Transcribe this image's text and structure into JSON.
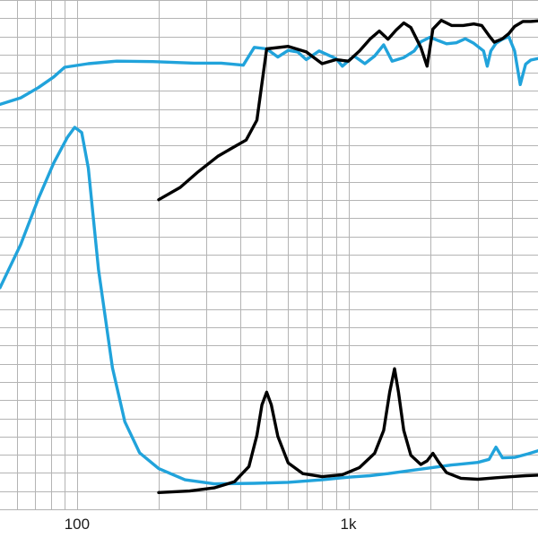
{
  "chart_data": {
    "type": "line",
    "title": "",
    "xlabel": "",
    "ylabel": "",
    "x_scale": "log",
    "xlim": [
      52,
      5000
    ],
    "ylim": [
      0,
      100
    ],
    "grid": true,
    "x_tick_labels": [
      {
        "value": 100,
        "label": "100"
      },
      {
        "value": 1000,
        "label": "1k"
      }
    ],
    "y_gridlines": [
      0,
      3.57,
      7.14,
      10.71,
      14.29,
      17.86,
      21.43,
      25,
      28.57,
      32.14,
      35.71,
      39.29,
      42.86,
      46.43,
      50,
      53.57,
      57.14,
      60.71,
      64.29,
      67.86,
      71.43,
      75,
      78.57,
      82.14,
      85.71,
      89.29,
      92.86,
      96.43,
      100
    ],
    "colors": {
      "blue": "#21a3db",
      "black": "#000000",
      "grid": "#b4b4b4"
    },
    "series": [
      {
        "color": "#21a3db",
        "points": [
          [
            52,
            79.5
          ],
          [
            62,
            80.8
          ],
          [
            72,
            82.8
          ],
          [
            82,
            84.9
          ],
          [
            90,
            86.8
          ],
          [
            110,
            87.5
          ],
          [
            140,
            88.0
          ],
          [
            190,
            87.9
          ],
          [
            270,
            87.6
          ],
          [
            340,
            87.6
          ],
          [
            410,
            87.2
          ],
          [
            450,
            90.7
          ],
          [
            500,
            90.4
          ],
          [
            550,
            88.8
          ],
          [
            600,
            90.1
          ],
          [
            650,
            89.8
          ],
          [
            700,
            88.3
          ],
          [
            780,
            90.0
          ],
          [
            850,
            89.1
          ],
          [
            900,
            88.5
          ],
          [
            950,
            87.0
          ],
          [
            1050,
            89.0
          ],
          [
            1150,
            87.5
          ],
          [
            1250,
            89.0
          ],
          [
            1350,
            91.2
          ],
          [
            1450,
            88.0
          ],
          [
            1600,
            88.7
          ],
          [
            1750,
            90.0
          ],
          [
            1850,
            91.8
          ],
          [
            2000,
            92.7
          ],
          [
            2150,
            92.0
          ],
          [
            2300,
            91.4
          ],
          [
            2500,
            91.6
          ],
          [
            2700,
            92.4
          ],
          [
            2900,
            91.5
          ],
          [
            3150,
            90.0
          ],
          [
            3250,
            87.0
          ],
          [
            3350,
            90.0
          ],
          [
            3500,
            91.5
          ],
          [
            3700,
            92.3
          ],
          [
            3900,
            92.8
          ],
          [
            4100,
            90.0
          ],
          [
            4300,
            83.4
          ],
          [
            4500,
            87.4
          ],
          [
            4700,
            88.2
          ],
          [
            5000,
            88.5
          ]
        ]
      },
      {
        "color": "#000000",
        "points": [
          [
            200,
            60.8
          ],
          [
            240,
            63.2
          ],
          [
            280,
            66.3
          ],
          [
            330,
            69.3
          ],
          [
            380,
            71.2
          ],
          [
            420,
            72.5
          ],
          [
            460,
            76.4
          ],
          [
            500,
            90.4
          ],
          [
            600,
            90.9
          ],
          [
            700,
            89.8
          ],
          [
            800,
            87.5
          ],
          [
            900,
            88.3
          ],
          [
            1000,
            88.0
          ],
          [
            1100,
            90.0
          ],
          [
            1200,
            92.3
          ],
          [
            1300,
            93.9
          ],
          [
            1400,
            92.3
          ],
          [
            1500,
            94.1
          ],
          [
            1600,
            95.5
          ],
          [
            1700,
            94.6
          ],
          [
            1850,
            90.7
          ],
          [
            1950,
            87.0
          ],
          [
            2050,
            94.3
          ],
          [
            2200,
            96.0
          ],
          [
            2400,
            95.0
          ],
          [
            2650,
            95.0
          ],
          [
            2900,
            95.3
          ],
          [
            3100,
            95.0
          ],
          [
            3300,
            93.0
          ],
          [
            3450,
            91.7
          ],
          [
            3700,
            92.4
          ],
          [
            3900,
            93.4
          ],
          [
            4100,
            94.8
          ],
          [
            4400,
            95.8
          ],
          [
            4700,
            95.8
          ],
          [
            5000,
            95.9
          ]
        ]
      },
      {
        "color": "#21a3db",
        "points": [
          [
            52,
            43.5
          ],
          [
            62,
            52.0
          ],
          [
            72,
            61.0
          ],
          [
            82,
            68.0
          ],
          [
            92,
            73.0
          ],
          [
            98,
            75.0
          ],
          [
            104,
            74.0
          ],
          [
            110,
            67.0
          ],
          [
            120,
            47.0
          ],
          [
            135,
            27.8
          ],
          [
            150,
            17.2
          ],
          [
            170,
            11.1
          ],
          [
            200,
            8.0
          ],
          [
            250,
            5.8
          ],
          [
            320,
            5.0
          ],
          [
            450,
            5.1
          ],
          [
            600,
            5.3
          ],
          [
            800,
            5.8
          ],
          [
            1000,
            6.3
          ],
          [
            1200,
            6.6
          ],
          [
            1400,
            7.0
          ],
          [
            1800,
            7.8
          ],
          [
            2400,
            8.7
          ],
          [
            3000,
            9.2
          ],
          [
            3300,
            9.8
          ],
          [
            3500,
            12.2
          ],
          [
            3700,
            10.1
          ],
          [
            4100,
            10.2
          ],
          [
            4600,
            10.9
          ],
          [
            5000,
            11.5
          ]
        ]
      },
      {
        "color": "#000000",
        "points": [
          [
            200,
            3.3
          ],
          [
            260,
            3.6
          ],
          [
            320,
            4.2
          ],
          [
            380,
            5.4
          ],
          [
            430,
            8.4
          ],
          [
            460,
            14.5
          ],
          [
            480,
            20.5
          ],
          [
            500,
            23.0
          ],
          [
            520,
            20.5
          ],
          [
            550,
            14.3
          ],
          [
            600,
            9.1
          ],
          [
            680,
            7.0
          ],
          [
            800,
            6.4
          ],
          [
            950,
            6.8
          ],
          [
            1100,
            8.2
          ],
          [
            1250,
            11.0
          ],
          [
            1350,
            15.5
          ],
          [
            1420,
            23.0
          ],
          [
            1480,
            27.6
          ],
          [
            1530,
            23.0
          ],
          [
            1600,
            15.5
          ],
          [
            1700,
            10.6
          ],
          [
            1850,
            8.8
          ],
          [
            1950,
            9.5
          ],
          [
            2050,
            11.0
          ],
          [
            2150,
            9.3
          ],
          [
            2300,
            7.2
          ],
          [
            2600,
            6.1
          ],
          [
            3000,
            5.9
          ],
          [
            3500,
            6.2
          ],
          [
            4000,
            6.4
          ],
          [
            4500,
            6.6
          ],
          [
            5000,
            6.7
          ]
        ]
      }
    ]
  }
}
